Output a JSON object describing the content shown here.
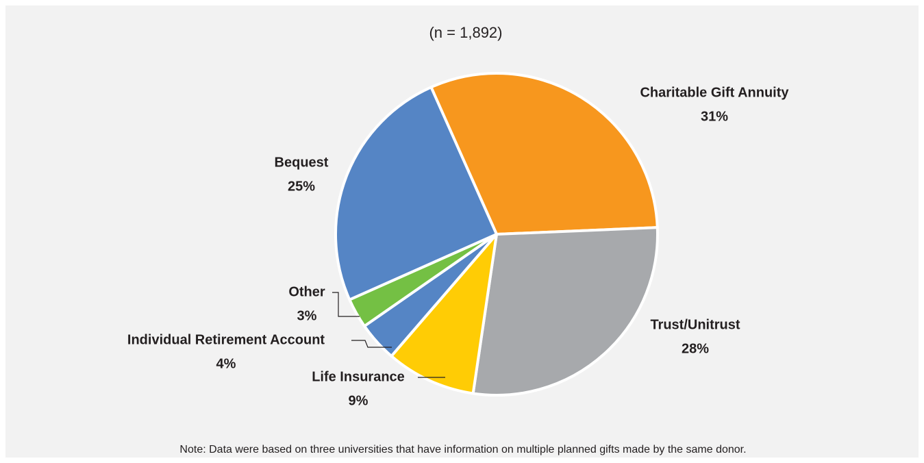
{
  "chart_data": {
    "type": "pie",
    "subtitle": "(n = 1,892)",
    "categories": [
      "Charitable Gift Annuity",
      "Trust/Unitrust",
      "Life Insurance",
      "Individual Retirement Account",
      "Other",
      "Bequest"
    ],
    "values": [
      31,
      28,
      9,
      4,
      3,
      25
    ],
    "value_labels": [
      "31%",
      "28%",
      "9%",
      "4%",
      "3%",
      "25%"
    ],
    "colors": [
      "#f7971e",
      "#a7a9ac",
      "#ffcc05",
      "#5585c5",
      "#74c044",
      "#5585c5"
    ],
    "note": "Note: Data were based on three universities that have information on multiple planned gifts made by the same donor."
  }
}
